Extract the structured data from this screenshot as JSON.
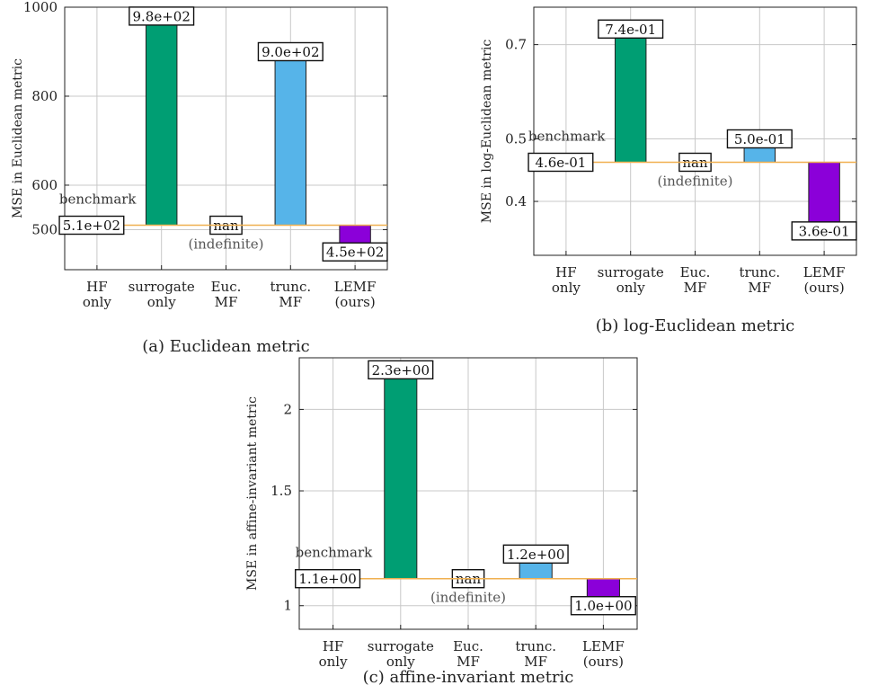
{
  "colors": {
    "surrogate": "#009e73",
    "trunc": "#56b4e9",
    "lemf": "#8b00d9",
    "benchmark": "#f0b050",
    "grid": "#c8c8c8",
    "axis": "#222222"
  },
  "categories": [
    [
      "HF",
      "only"
    ],
    [
      "surrogate",
      "only"
    ],
    [
      "Euc.",
      "MF"
    ],
    [
      "trunc.",
      "MF"
    ],
    [
      "LEMF",
      "(ours)"
    ]
  ],
  "chart_data": [
    {
      "type": "bar",
      "caption": "(a) Euclidean metric",
      "ylabel": "MSE in Euclidean metric",
      "scale": "linear",
      "ylim": [
        410,
        1000
      ],
      "yticks": [
        500,
        600,
        800,
        1000
      ],
      "grid": true,
      "benchmark": {
        "label": "benchmark",
        "value": 510,
        "value_label": "5.1e+02"
      },
      "bars": [
        {
          "category": "surrogate only",
          "value": 980,
          "label": "9.8e+02",
          "color": "surrogate"
        },
        {
          "category": "Euc. MF",
          "value": null,
          "label": "nan",
          "note": "(indefinite)"
        },
        {
          "category": "trunc. MF",
          "value": 900,
          "label": "9.0e+02",
          "color": "trunc"
        },
        {
          "category": "LEMF (ours)",
          "value": 450,
          "label": "4.5e+02",
          "color": "lemf"
        }
      ]
    },
    {
      "type": "bar",
      "caption": "(b) log-Euclidean metric",
      "ylabel": "MSE in log-Euclidean metric",
      "scale": "log",
      "ylim": [
        0.33,
        0.8
      ],
      "yticks": [
        0.4,
        0.5,
        0.7
      ],
      "grid": true,
      "benchmark": {
        "label": "benchmark",
        "value": 0.46,
        "value_label": "4.6e-01"
      },
      "bars": [
        {
          "category": "surrogate only",
          "value": 0.74,
          "label": "7.4e-01",
          "color": "surrogate"
        },
        {
          "category": "Euc. MF",
          "value": null,
          "label": "nan",
          "note": "(indefinite)"
        },
        {
          "category": "trunc. MF",
          "value": 0.5,
          "label": "5.0e-01",
          "color": "trunc"
        },
        {
          "category": "LEMF (ours)",
          "value": 0.36,
          "label": "3.6e-01",
          "color": "lemf"
        }
      ]
    },
    {
      "type": "bar",
      "caption": "(c) affine-invariant metric",
      "ylabel": "MSE in affine-invariant metric",
      "scale": "log",
      "ylim": [
        0.92,
        2.4
      ],
      "yticks": [
        1,
        1.5,
        2
      ],
      "ytick_labels": [
        "1",
        "1.5",
        "2"
      ],
      "grid": true,
      "benchmark": {
        "label": "benchmark",
        "value": 1.1,
        "value_label": "1.1e+00"
      },
      "bars": [
        {
          "category": "surrogate only",
          "value": 2.3,
          "label": "2.3e+00",
          "color": "surrogate"
        },
        {
          "category": "Euc. MF",
          "value": null,
          "label": "nan",
          "note": "(indefinite)"
        },
        {
          "category": "trunc. MF",
          "value": 1.2,
          "label": "1.2e+00",
          "color": "trunc"
        },
        {
          "category": "LEMF (ours)",
          "value": 1.0,
          "label": "1.0e+00",
          "color": "lemf"
        }
      ]
    }
  ]
}
